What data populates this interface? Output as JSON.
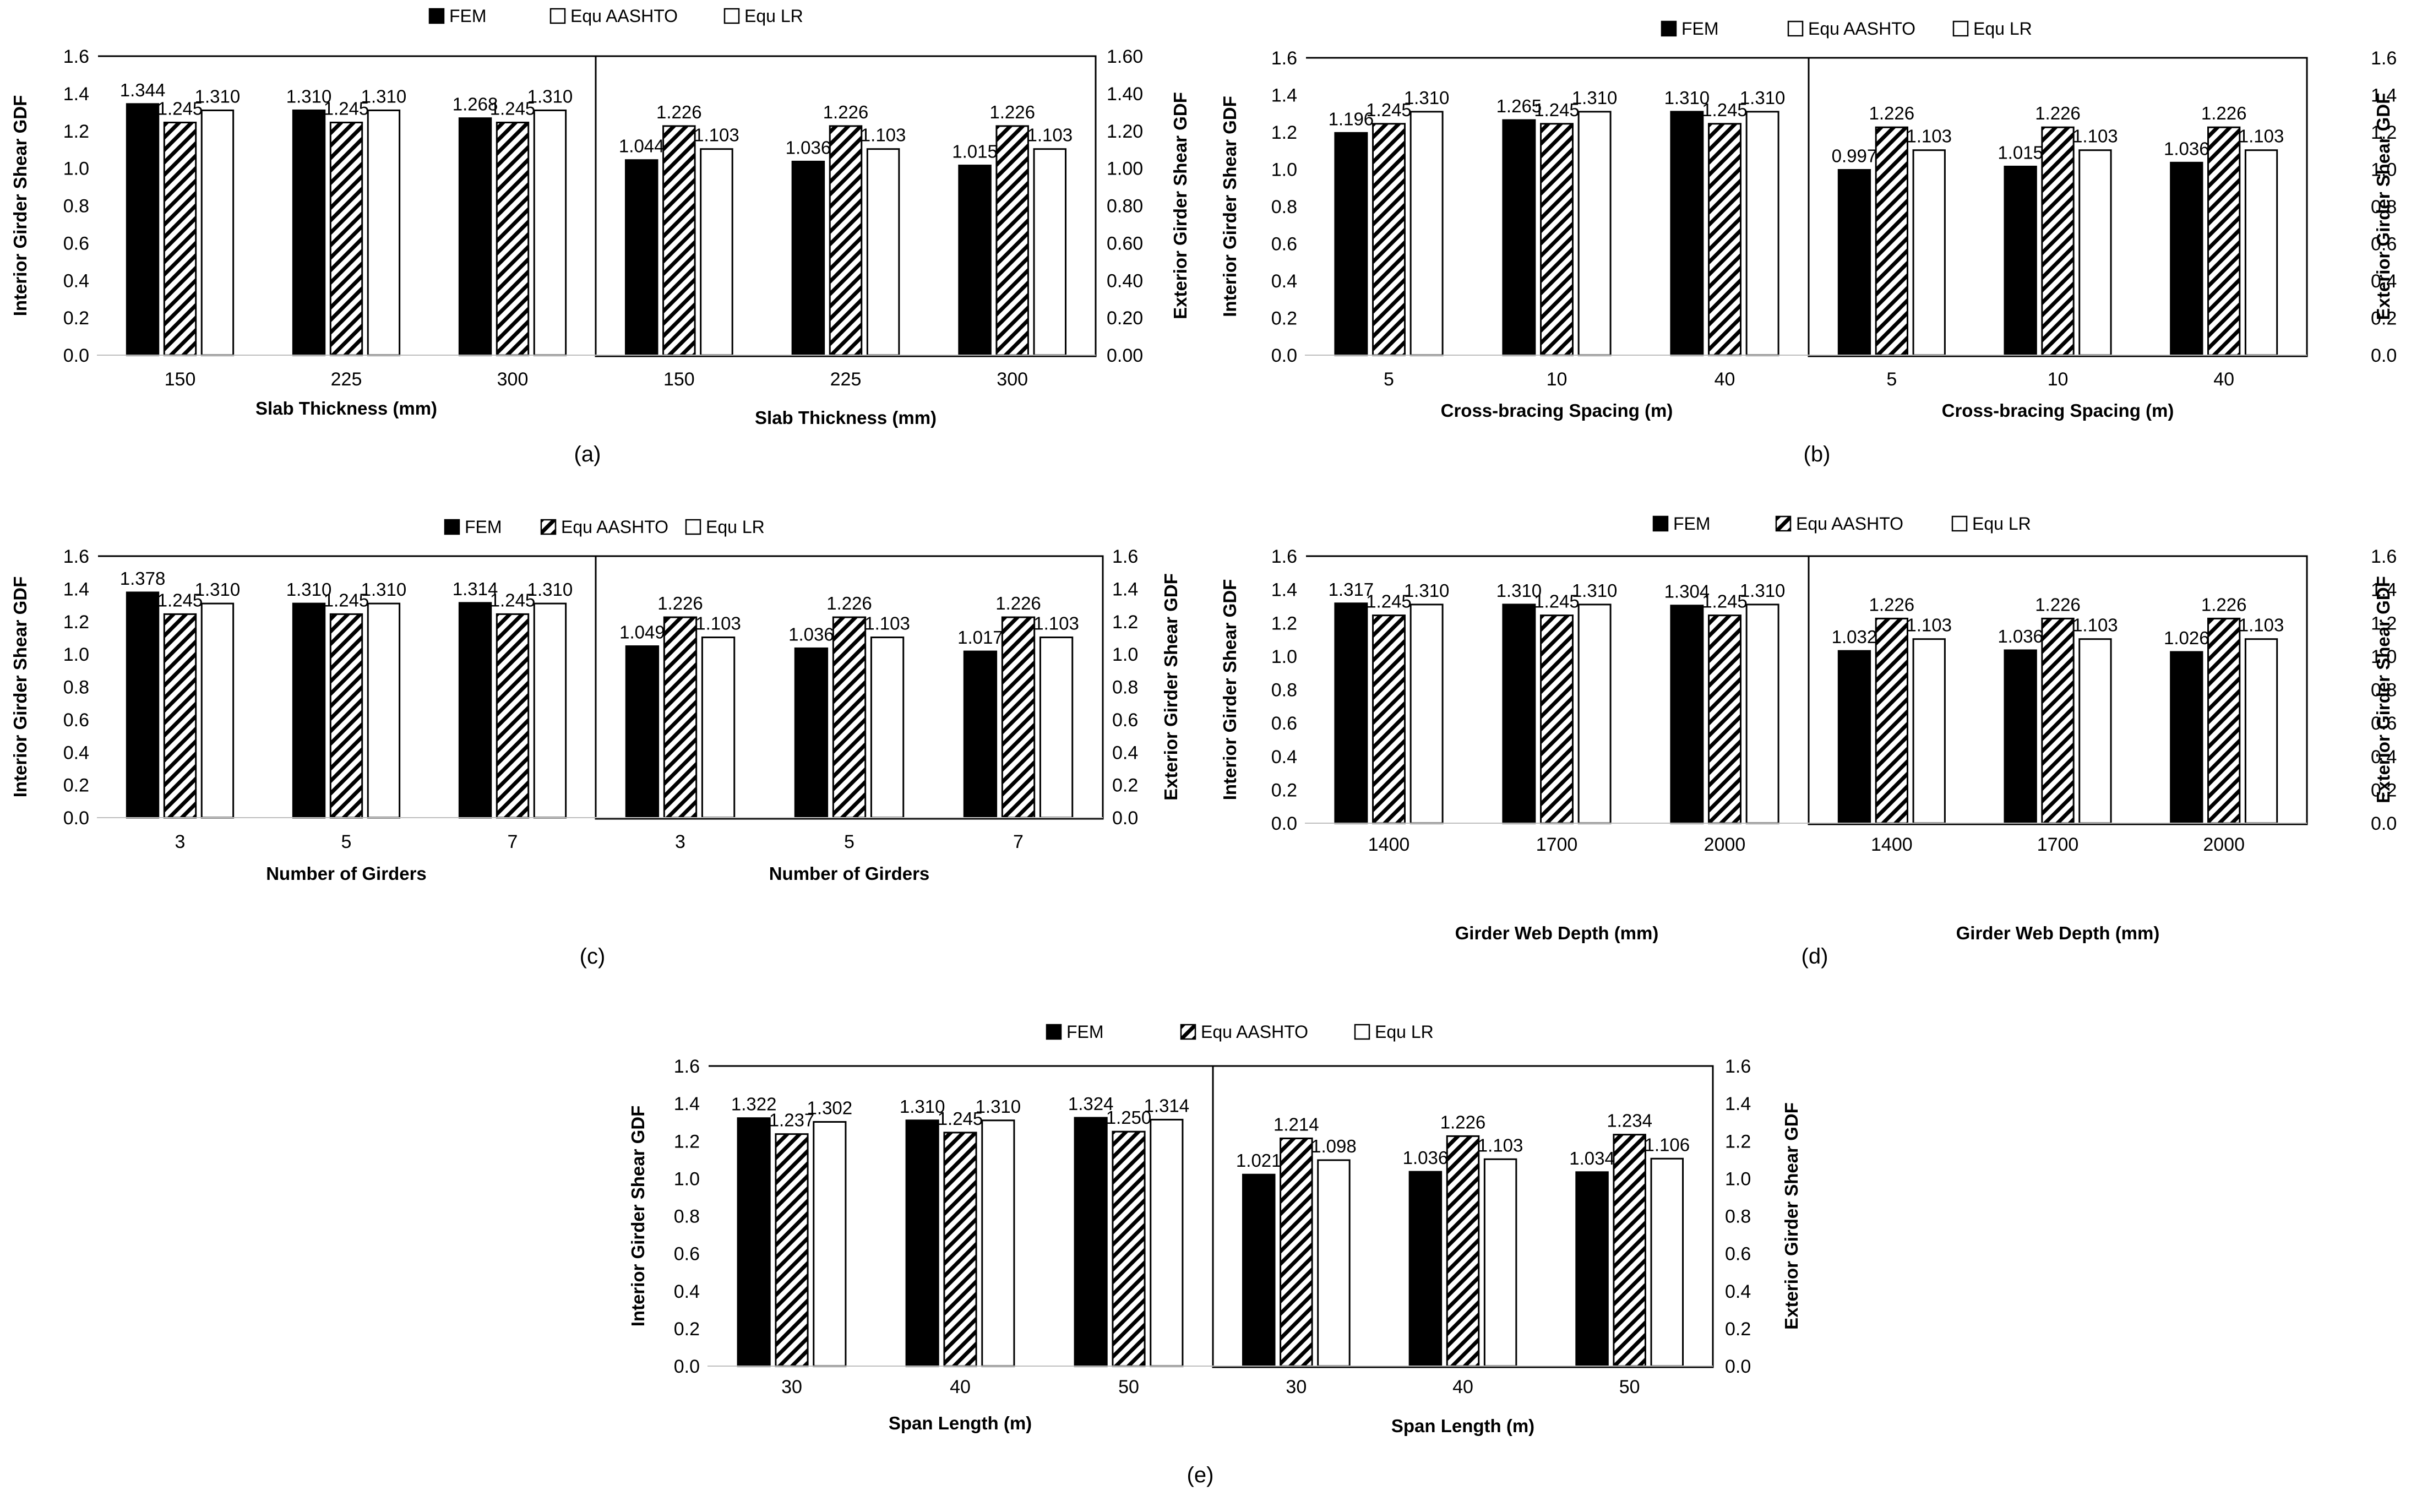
{
  "chart_data": [
    {
      "type": "bar",
      "panel_label": "(a)",
      "legend": [
        {
          "label": "FEM",
          "fill": "black"
        },
        {
          "label": "Equ AASHTO",
          "fill": "white"
        },
        {
          "label": "Equ LR",
          "fill": "white"
        }
      ],
      "left": {
        "categories": [
          "150",
          "225",
          "300"
        ],
        "xlabel": "Slab Thickness (mm)",
        "ylabel": "Interior Girder Shear GDF",
        "ylim": [
          0,
          1.6
        ],
        "yticks": [
          "0.0",
          "0.2",
          "0.4",
          "0.6",
          "0.8",
          "1.0",
          "1.2",
          "1.4",
          "1.6"
        ],
        "series": [
          {
            "name": "FEM",
            "values": [
              1.344,
              1.31,
              1.268
            ],
            "labels": [
              "1.344",
              "1.310",
              "1.268"
            ]
          },
          {
            "name": "Equ AASHTO",
            "values": [
              1.245,
              1.245,
              1.245
            ],
            "labels": [
              "1.245",
              "1.245",
              "1.245"
            ]
          },
          {
            "name": "Equ LR",
            "values": [
              1.31,
              1.31,
              1.31
            ],
            "labels": [
              "1.310",
              "1.310",
              "1.310"
            ]
          }
        ]
      },
      "right": {
        "categories": [
          "150",
          "225",
          "300"
        ],
        "xlabel": "Slab Thickness (mm)",
        "ylabel": "Exterior Girder Shear GDF",
        "ylim": [
          0,
          1.6
        ],
        "yticks": [
          "0.00",
          "0.20",
          "0.40",
          "0.60",
          "0.80",
          "1.00",
          "1.20",
          "1.40",
          "1.60"
        ],
        "series": [
          {
            "name": "FEM",
            "values": [
              1.044,
              1.036,
              1.015
            ],
            "labels": [
              "1.044",
              "1.036",
              "1.015"
            ]
          },
          {
            "name": "Equ AASHTO",
            "values": [
              1.226,
              1.226,
              1.226
            ],
            "labels": [
              "1.226",
              "1.226",
              "1.226"
            ]
          },
          {
            "name": "Equ LR",
            "values": [
              1.103,
              1.103,
              1.103
            ],
            "labels": [
              "1.103",
              "1.103",
              "1.103"
            ]
          }
        ]
      }
    },
    {
      "type": "bar",
      "panel_label": "(b)",
      "legend": [
        {
          "label": "FEM",
          "fill": "black"
        },
        {
          "label": "Equ  AASHTO",
          "fill": "white"
        },
        {
          "label": "Equ LR",
          "fill": "white"
        }
      ],
      "left": {
        "categories": [
          "5",
          "10",
          "40"
        ],
        "xlabel": "Cross-bracing Spacing (m)",
        "ylabel": "Interior Girder Shear GDF",
        "ylim": [
          0,
          1.6
        ],
        "yticks": [
          "0.0",
          "0.2",
          "0.4",
          "0.6",
          "0.8",
          "1.0",
          "1.2",
          "1.4",
          "1.6"
        ],
        "series": [
          {
            "name": "FEM",
            "values": [
              1.196,
              1.265,
              1.31
            ],
            "labels": [
              "1.196",
              "1.265",
              "1.310"
            ]
          },
          {
            "name": "Equ  AASHTO",
            "values": [
              1.245,
              1.245,
              1.245
            ],
            "labels": [
              "1.245",
              "1.245",
              "1.245"
            ]
          },
          {
            "name": "Equ LR",
            "values": [
              1.31,
              1.31,
              1.31
            ],
            "labels": [
              "1.310",
              "1.310",
              "1.310"
            ]
          }
        ]
      },
      "right": {
        "categories": [
          "5",
          "10",
          "40"
        ],
        "xlabel": "Cross-bracing Spacing (m)",
        "ylabel": "Exterior Girder Shear GDF",
        "ylim": [
          0,
          1.6
        ],
        "yticks": [
          "0.0",
          "0.2",
          "0.4",
          "0.6",
          "0.8",
          "1.0",
          "1.2",
          "1.4",
          "1.6"
        ],
        "series": [
          {
            "name": "FEM",
            "values": [
              0.997,
              1.015,
              1.036
            ],
            "labels": [
              "0.997",
              "1.015",
              "1.036"
            ]
          },
          {
            "name": "Equ  AASHTO",
            "values": [
              1.226,
              1.226,
              1.226
            ],
            "labels": [
              "1.226",
              "1.226",
              "1.226"
            ]
          },
          {
            "name": "Equ LR",
            "values": [
              1.103,
              1.103,
              1.103
            ],
            "labels": [
              "1.103",
              "1.103",
              "1.103"
            ]
          }
        ]
      }
    },
    {
      "type": "bar",
      "panel_label": "(c)",
      "legend": [
        {
          "label": "FEM",
          "fill": "black"
        },
        {
          "label": "Equ AASHTO",
          "fill": "hatch"
        },
        {
          "label": "Equ LR",
          "fill": "white"
        }
      ],
      "left": {
        "categories": [
          "3",
          "5",
          "7"
        ],
        "xlabel": "Number of Girders",
        "ylabel": "Interior Girder Shear GDF",
        "ylim": [
          0,
          1.6
        ],
        "yticks": [
          "0.0",
          "0.2",
          "0.4",
          "0.6",
          "0.8",
          "1.0",
          "1.2",
          "1.4",
          "1.6"
        ],
        "series": [
          {
            "name": "FEM",
            "values": [
              1.378,
              1.31,
              1.314
            ],
            "labels": [
              "1.378",
              "1.310",
              "1.314"
            ]
          },
          {
            "name": "Equ AASHTO",
            "values": [
              1.245,
              1.245,
              1.245
            ],
            "labels": [
              "1.245",
              "1.245",
              "1.245"
            ]
          },
          {
            "name": "Equ LR",
            "values": [
              1.31,
              1.31,
              1.31
            ],
            "labels": [
              "1.310",
              "1.310",
              "1.310"
            ]
          }
        ]
      },
      "right": {
        "categories": [
          "3",
          "5",
          "7"
        ],
        "xlabel": "Number of Girders",
        "ylabel": "Exterior Girder Shear GDF",
        "ylim": [
          0,
          1.6
        ],
        "yticks": [
          "0.0",
          "0.2",
          "0.4",
          "0.6",
          "0.8",
          "1.0",
          "1.2",
          "1.4",
          "1.6"
        ],
        "series": [
          {
            "name": "FEM",
            "values": [
              1.049,
              1.036,
              1.017
            ],
            "labels": [
              "1.049",
              "1.036",
              "1.017"
            ]
          },
          {
            "name": "Equ AASHTO",
            "values": [
              1.226,
              1.226,
              1.226
            ],
            "labels": [
              "1.226",
              "1.226",
              "1.226"
            ]
          },
          {
            "name": "Equ LR",
            "values": [
              1.103,
              1.103,
              1.103
            ],
            "labels": [
              "1.103",
              "1.103",
              "1.103"
            ]
          }
        ]
      }
    },
    {
      "type": "bar",
      "panel_label": "(d)",
      "legend": [
        {
          "label": "FEM",
          "fill": "black"
        },
        {
          "label": "Equ AASHTO",
          "fill": "hatch"
        },
        {
          "label": "Equ LR",
          "fill": "white"
        }
      ],
      "left": {
        "categories": [
          "1400",
          "1700",
          "2000"
        ],
        "xlabel": "Girder Web  Depth (mm)",
        "ylabel": "Interior Girder Shear GDF",
        "ylim": [
          0,
          1.6
        ],
        "yticks": [
          "0.0",
          "0.2",
          "0.4",
          "0.6",
          "0.8",
          "1.0",
          "1.2",
          "1.4",
          "1.6"
        ],
        "series": [
          {
            "name": "FEM",
            "values": [
              1.317,
              1.31,
              1.304
            ],
            "labels": [
              "1.317",
              "1.310",
              "1.304"
            ]
          },
          {
            "name": "Equ AASHTO",
            "values": [
              1.245,
              1.245,
              1.245
            ],
            "labels": [
              "1.245",
              "1.245",
              "1.245"
            ]
          },
          {
            "name": "Equ LR",
            "values": [
              1.31,
              1.31,
              1.31
            ],
            "labels": [
              "1.310",
              "1.310",
              "1.310"
            ]
          }
        ]
      },
      "right": {
        "categories": [
          "1400",
          "1700",
          "2000"
        ],
        "xlabel": "Girder Web Depth (mm)",
        "ylabel": "Exterior Girder Shear GDF",
        "ylim": [
          0,
          1.6
        ],
        "yticks": [
          "0.0",
          "0.2",
          "0.4",
          "0.6",
          "0.8",
          "1.0",
          "1.2",
          "1.4",
          "1.6"
        ],
        "series": [
          {
            "name": "FEM",
            "values": [
              1.032,
              1.036,
              1.026
            ],
            "labels": [
              "1.032",
              "1.036",
              "1.026"
            ]
          },
          {
            "name": "Equ AASHTO",
            "values": [
              1.226,
              1.226,
              1.226
            ],
            "labels": [
              "1.226",
              "1.226",
              "1.226"
            ]
          },
          {
            "name": "Equ LR",
            "values": [
              1.103,
              1.103,
              1.103
            ],
            "labels": [
              "1.103",
              "1.103",
              "1.103"
            ]
          }
        ]
      }
    },
    {
      "type": "bar",
      "panel_label": "(e)",
      "legend": [
        {
          "label": "FEM",
          "fill": "black"
        },
        {
          "label": "Equ AASHTO",
          "fill": "hatch"
        },
        {
          "label": "Equ LR",
          "fill": "white"
        }
      ],
      "left": {
        "categories": [
          "30",
          "40",
          "50"
        ],
        "xlabel": "Span Length (m)",
        "ylabel": "Interior Girder Shear GDF",
        "ylim": [
          0,
          1.6
        ],
        "yticks": [
          "0.0",
          "0.2",
          "0.4",
          "0.6",
          "0.8",
          "1.0",
          "1.2",
          "1.4",
          "1.6"
        ],
        "series": [
          {
            "name": "FEM",
            "values": [
              1.322,
              1.31,
              1.324
            ],
            "labels": [
              "1.322",
              "1.310",
              "1.324"
            ]
          },
          {
            "name": "Equ AASHTO",
            "values": [
              1.237,
              1.245,
              1.25
            ],
            "labels": [
              "1.237",
              "1.245",
              "1.250"
            ]
          },
          {
            "name": "Equ LR",
            "values": [
              1.302,
              1.31,
              1.314
            ],
            "labels": [
              "1.302",
              "1.310",
              "1.314"
            ]
          }
        ]
      },
      "right": {
        "categories": [
          "30",
          "40",
          "50"
        ],
        "xlabel": "Span Length (m)",
        "ylabel": "Exterior Girder Shear GDF",
        "ylim": [
          0,
          1.6
        ],
        "yticks": [
          "0.0",
          "0.2",
          "0.4",
          "0.6",
          "0.8",
          "1.0",
          "1.2",
          "1.4",
          "1.6"
        ],
        "series": [
          {
            "name": "FEM",
            "values": [
              1.021,
              1.036,
              1.034
            ],
            "labels": [
              "1.021",
              "1.036",
              "1.034"
            ]
          },
          {
            "name": "Equ AASHTO",
            "values": [
              1.214,
              1.226,
              1.234
            ],
            "labels": [
              "1.214",
              "1.226",
              "1.234"
            ]
          },
          {
            "name": "Equ LR",
            "values": [
              1.098,
              1.103,
              1.106
            ],
            "labels": [
              "1.098",
              "1.103",
              "1.106"
            ]
          }
        ]
      }
    }
  ]
}
